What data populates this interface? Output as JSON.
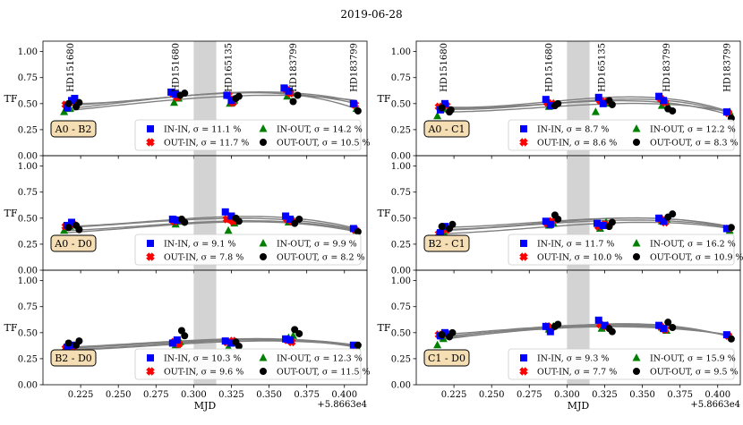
{
  "figure_title": "2019-06-28",
  "chart_data": {
    "type": "scatter",
    "title": "2019-06-28",
    "xlabel": "MJD",
    "ylabel": "TF",
    "x_offset_label": "+5.8663e4",
    "xlim": [
      0.2,
      0.415
    ],
    "ylim": [
      0.0,
      1.1
    ],
    "x_ticks": [
      0.225,
      0.25,
      0.275,
      0.3,
      0.325,
      0.35,
      0.375,
      0.4
    ],
    "x_tick_labels": [
      "0.225",
      "0.250",
      "0.275",
      "0.300",
      "0.325",
      "0.350",
      "0.375",
      "0.400"
    ],
    "y_ticks": [
      0.0,
      0.25,
      0.5,
      0.75,
      1.0
    ],
    "y_tick_labels": [
      "0.00",
      "0.25",
      "0.50",
      "0.75",
      "1.00"
    ],
    "shaded_band": [
      0.3,
      0.315
    ],
    "star_labels": [
      {
        "x": 0.218,
        "name": "HD151680"
      },
      {
        "x": 0.288,
        "name": "HD151680"
      },
      {
        "x": 0.323,
        "name": "HD165135"
      },
      {
        "x": 0.366,
        "name": "HD183799"
      },
      {
        "x": 0.406,
        "name": "HD183799"
      }
    ],
    "legend_entries": [
      "IN-IN",
      "OUT-IN",
      "IN-OUT",
      "OUT-OUT"
    ],
    "sigma_symbol": "σ",
    "panels": [
      {
        "baseline": "A0 - B2",
        "sigma": {
          "IN-IN": "11.1 %",
          "OUT-IN": "11.7 %",
          "IN-OUT": "14.2 %",
          "OUT-OUT": "10.5 %"
        },
        "fits": [
          [
            0.48,
            0.57,
            0.6,
            0.5
          ],
          [
            0.45,
            0.57,
            0.61,
            0.52
          ],
          [
            0.43,
            0.54,
            0.58,
            0.53
          ],
          [
            0.5,
            0.57,
            0.6,
            0.45
          ]
        ],
        "series": [
          {
            "name": "IN-IN",
            "x": [
              0.216,
              0.219,
              0.221,
              0.285,
              0.288,
              0.322,
              0.325,
              0.36,
              0.363,
              0.406
            ],
            "y": [
              0.46,
              0.53,
              0.55,
              0.61,
              0.59,
              0.58,
              0.53,
              0.65,
              0.62,
              0.5
            ]
          },
          {
            "name": "OUT-IN",
            "x": [
              0.215,
              0.22,
              0.286,
              0.289,
              0.323,
              0.326,
              0.361,
              0.364,
              0.407
            ],
            "y": [
              0.49,
              0.52,
              0.6,
              0.56,
              0.58,
              0.51,
              0.64,
              0.6,
              0.49
            ]
          },
          {
            "name": "IN-OUT",
            "x": [
              0.214,
              0.218,
              0.287,
              0.29,
              0.324,
              0.327,
              0.362,
              0.365,
              0.408
            ],
            "y": [
              0.42,
              0.45,
              0.51,
              0.55,
              0.5,
              0.53,
              0.57,
              0.6,
              0.45
            ]
          },
          {
            "name": "OUT-OUT",
            "x": [
              0.217,
              0.222,
              0.224,
              0.291,
              0.294,
              0.328,
              0.33,
              0.366,
              0.369,
              0.409
            ],
            "y": [
              0.5,
              0.47,
              0.51,
              0.58,
              0.6,
              0.55,
              0.57,
              0.52,
              0.58,
              0.43
            ]
          }
        ]
      },
      {
        "baseline": "A0 - C1",
        "sigma": {
          "IN-IN": "8.7 %",
          "OUT-IN": "8.6 %",
          "IN-OUT": "12.2 %",
          "OUT-OUT": "8.3 %"
        },
        "fits": [
          [
            0.47,
            0.52,
            0.56,
            0.42
          ],
          [
            0.45,
            0.5,
            0.54,
            0.41
          ],
          [
            0.42,
            0.47,
            0.5,
            0.42
          ],
          [
            0.46,
            0.5,
            0.52,
            0.39
          ]
        ],
        "series": [
          {
            "name": "IN-IN",
            "x": [
              0.216,
              0.219,
              0.286,
              0.289,
              0.321,
              0.324,
              0.361,
              0.364,
              0.406
            ],
            "y": [
              0.44,
              0.5,
              0.54,
              0.48,
              0.56,
              0.5,
              0.57,
              0.53,
              0.42
            ]
          },
          {
            "name": "OUT-IN",
            "x": [
              0.215,
              0.22,
              0.287,
              0.29,
              0.322,
              0.325,
              0.362,
              0.365,
              0.407
            ],
            "y": [
              0.47,
              0.48,
              0.51,
              0.5,
              0.53,
              0.52,
              0.55,
              0.51,
              0.41
            ]
          },
          {
            "name": "IN-OUT",
            "x": [
              0.214,
              0.218,
              0.288,
              0.291,
              0.319,
              0.326,
              0.363,
              0.366,
              0.408
            ],
            "y": [
              0.38,
              0.45,
              0.47,
              0.5,
              0.42,
              0.5,
              0.48,
              0.51,
              0.42
            ]
          },
          {
            "name": "OUT-OUT",
            "x": [
              0.217,
              0.222,
              0.223,
              0.292,
              0.294,
              0.328,
              0.33,
              0.367,
              0.37,
              0.409
            ],
            "y": [
              0.46,
              0.42,
              0.44,
              0.48,
              0.5,
              0.53,
              0.49,
              0.45,
              0.43,
              0.36
            ]
          }
        ]
      },
      {
        "baseline": "A0 - D0",
        "sigma": {
          "IN-IN": "9.1 %",
          "OUT-IN": "7.8 %",
          "IN-OUT": "9.9 %",
          "OUT-OUT": "8.2 %"
        },
        "fits": [
          [
            0.42,
            0.49,
            0.51,
            0.4
          ],
          [
            0.41,
            0.48,
            0.49,
            0.39
          ],
          [
            0.38,
            0.45,
            0.47,
            0.38
          ],
          [
            0.36,
            0.44,
            0.46,
            0.37
          ]
        ],
        "series": [
          {
            "name": "IN-IN",
            "x": [
              0.216,
              0.219,
              0.286,
              0.289,
              0.321,
              0.325,
              0.361,
              0.364,
              0.406
            ],
            "y": [
              0.43,
              0.46,
              0.49,
              0.48,
              0.56,
              0.52,
              0.52,
              0.49,
              0.4
            ]
          },
          {
            "name": "OUT-IN",
            "x": [
              0.215,
              0.22,
              0.287,
              0.29,
              0.322,
              0.326,
              0.362,
              0.365,
              0.407
            ],
            "y": [
              0.42,
              0.44,
              0.47,
              0.48,
              0.49,
              0.47,
              0.49,
              0.47,
              0.39
            ]
          },
          {
            "name": "IN-OUT",
            "x": [
              0.214,
              0.218,
              0.288,
              0.291,
              0.323,
              0.327,
              0.363,
              0.366,
              0.408
            ],
            "y": [
              0.38,
              0.42,
              0.44,
              0.47,
              0.38,
              0.45,
              0.46,
              0.48,
              0.38
            ]
          },
          {
            "name": "OUT-OUT",
            "x": [
              0.217,
              0.222,
              0.224,
              0.292,
              0.294,
              0.328,
              0.33,
              0.367,
              0.37,
              0.409
            ],
            "y": [
              0.41,
              0.43,
              0.39,
              0.49,
              0.46,
              0.5,
              0.47,
              0.45,
              0.49,
              0.37
            ]
          }
        ]
      },
      {
        "baseline": "B2 - C1",
        "sigma": {
          "IN-IN": "11.7 %",
          "OUT-IN": "10.0 %",
          "IN-OUT": "16.2 %",
          "OUT-OUT": "10.9 %"
        },
        "fits": [
          [
            0.41,
            0.47,
            0.5,
            0.42
          ],
          [
            0.38,
            0.45,
            0.48,
            0.41
          ],
          [
            0.35,
            0.42,
            0.46,
            0.4
          ],
          [
            0.39,
            0.46,
            0.5,
            0.41
          ]
        ],
        "series": [
          {
            "name": "IN-IN",
            "x": [
              0.216,
              0.219,
              0.286,
              0.289,
              0.32,
              0.324,
              0.361,
              0.364,
              0.406
            ],
            "y": [
              0.36,
              0.42,
              0.47,
              0.44,
              0.45,
              0.43,
              0.5,
              0.47,
              0.4
            ]
          },
          {
            "name": "OUT-IN",
            "x": [
              0.215,
              0.22,
              0.287,
              0.29,
              0.321,
              0.325,
              0.362,
              0.365,
              0.407
            ],
            "y": [
              0.35,
              0.39,
              0.45,
              0.47,
              0.42,
              0.44,
              0.49,
              0.46,
              0.4
            ]
          },
          {
            "name": "IN-OUT",
            "x": [
              0.214,
              0.218,
              0.288,
              0.291,
              0.322,
              0.326,
              0.363,
              0.366,
              0.408
            ],
            "y": [
              0.33,
              0.37,
              0.43,
              0.45,
              0.4,
              0.46,
              0.47,
              0.49,
              0.38
            ]
          },
          {
            "name": "OUT-OUT",
            "x": [
              0.217,
              0.222,
              0.224,
              0.292,
              0.294,
              0.328,
              0.33,
              0.367,
              0.37,
              0.409
            ],
            "y": [
              0.42,
              0.4,
              0.44,
              0.53,
              0.49,
              0.42,
              0.46,
              0.51,
              0.54,
              0.41
            ]
          }
        ]
      },
      {
        "baseline": "B2 - D0",
        "sigma": {
          "IN-IN": "10.3 %",
          "OUT-IN": "9.6 %",
          "IN-OUT": "12.3 %",
          "OUT-OUT": "11.5 %"
        },
        "fits": [
          [
            0.36,
            0.42,
            0.44,
            0.38
          ],
          [
            0.35,
            0.41,
            0.43,
            0.37
          ],
          [
            0.33,
            0.39,
            0.42,
            0.37
          ],
          [
            0.34,
            0.4,
            0.43,
            0.36
          ]
        ],
        "series": [
          {
            "name": "IN-IN",
            "x": [
              0.216,
              0.219,
              0.286,
              0.289,
              0.321,
              0.325,
              0.361,
              0.364,
              0.406
            ],
            "y": [
              0.36,
              0.38,
              0.4,
              0.43,
              0.42,
              0.4,
              0.44,
              0.43,
              0.38
            ]
          },
          {
            "name": "OUT-IN",
            "x": [
              0.215,
              0.22,
              0.287,
              0.29,
              0.322,
              0.326,
              0.362,
              0.365,
              0.407
            ],
            "y": [
              0.35,
              0.37,
              0.41,
              0.39,
              0.41,
              0.42,
              0.43,
              0.41,
              0.37
            ]
          },
          {
            "name": "IN-OUT",
            "x": [
              0.214,
              0.218,
              0.288,
              0.291,
              0.323,
              0.327,
              0.363,
              0.366,
              0.408
            ],
            "y": [
              0.33,
              0.35,
              0.38,
              0.41,
              0.36,
              0.4,
              0.45,
              0.47,
              0.37
            ]
          },
          {
            "name": "OUT-OUT",
            "x": [
              0.217,
              0.222,
              0.224,
              0.292,
              0.294,
              0.328,
              0.33,
              0.367,
              0.37,
              0.409
            ],
            "y": [
              0.4,
              0.38,
              0.42,
              0.52,
              0.47,
              0.41,
              0.37,
              0.53,
              0.49,
              0.38
            ]
          }
        ]
      },
      {
        "baseline": "C1 - D0",
        "sigma": {
          "IN-IN": "9.3 %",
          "OUT-IN": "7.7 %",
          "IN-OUT": "15.9 %",
          "OUT-OUT": "9.5 %"
        },
        "fits": [
          [
            0.48,
            0.56,
            0.57,
            0.47
          ],
          [
            0.46,
            0.55,
            0.56,
            0.47
          ],
          [
            0.43,
            0.54,
            0.55,
            0.48
          ],
          [
            0.45,
            0.55,
            0.58,
            0.46
          ]
        ],
        "series": [
          {
            "name": "IN-IN",
            "x": [
              0.216,
              0.219,
              0.286,
              0.289,
              0.321,
              0.325,
              0.361,
              0.364,
              0.406
            ],
            "y": [
              0.47,
              0.5,
              0.56,
              0.51,
              0.62,
              0.57,
              0.57,
              0.54,
              0.48
            ]
          },
          {
            "name": "OUT-IN",
            "x": [
              0.215,
              0.22,
              0.287,
              0.29,
              0.322,
              0.326,
              0.362,
              0.365,
              0.407
            ],
            "y": [
              0.48,
              0.49,
              0.56,
              0.55,
              0.58,
              0.56,
              0.56,
              0.53,
              0.47
            ]
          },
          {
            "name": "IN-OUT",
            "x": [
              0.214,
              0.218,
              0.288,
              0.291,
              0.323,
              0.327,
              0.363,
              0.366,
              0.408
            ],
            "y": [
              0.38,
              0.44,
              0.53,
              0.56,
              0.54,
              0.57,
              0.55,
              0.52,
              0.47
            ]
          },
          {
            "name": "OUT-OUT",
            "x": [
              0.217,
              0.222,
              0.224,
              0.292,
              0.294,
              0.328,
              0.33,
              0.367,
              0.37,
              0.409
            ],
            "y": [
              0.48,
              0.46,
              0.5,
              0.56,
              0.58,
              0.54,
              0.51,
              0.6,
              0.55,
              0.44
            ]
          }
        ]
      }
    ]
  },
  "colors": {
    "IN-IN": "#0000ff",
    "OUT-IN": "#ff0000",
    "IN-OUT": "#008000",
    "OUT-OUT": "#000000",
    "band": "#d3d3d3",
    "fit": "#808080",
    "label_box": "#f5deb3"
  }
}
